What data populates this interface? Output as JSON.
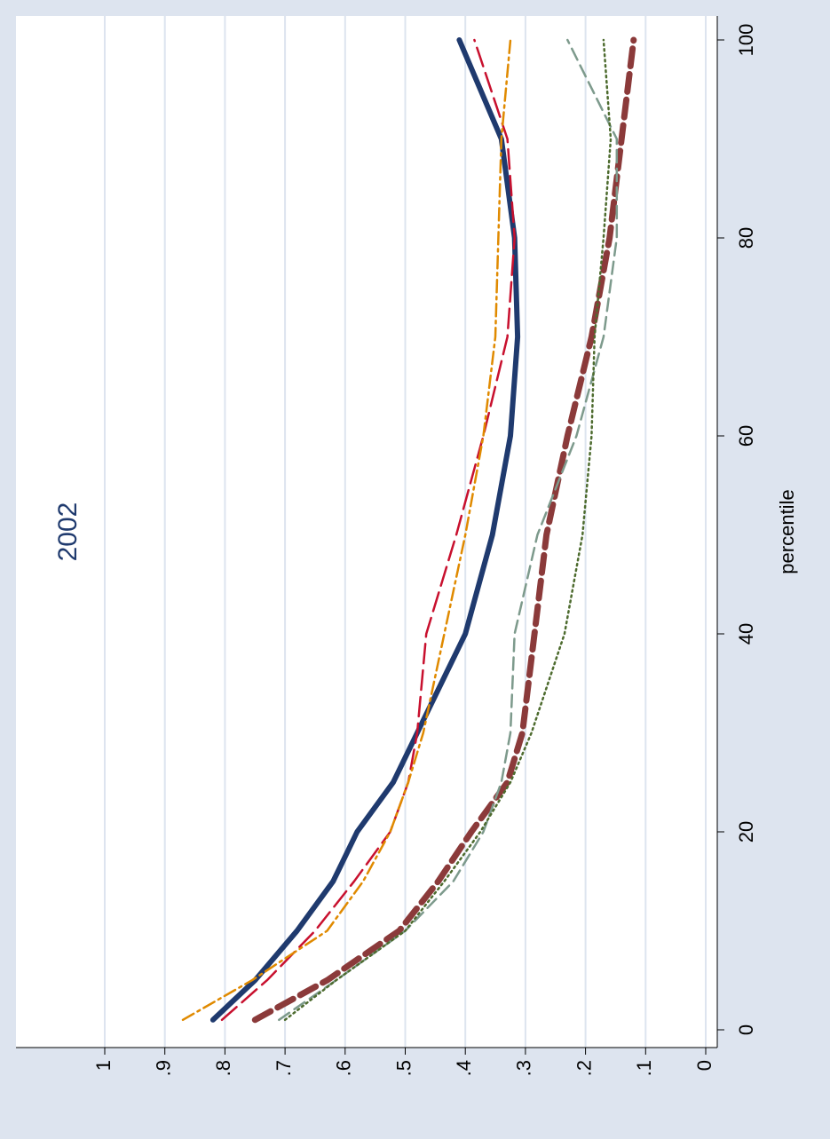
{
  "chart_data": {
    "type": "line",
    "title": "2002",
    "x_label": "percentile",
    "x": [
      1,
      5,
      10,
      15,
      20,
      25,
      30,
      40,
      50,
      60,
      70,
      80,
      90,
      100
    ],
    "series": [
      {
        "color": "#1f3a6e",
        "values": [
          0.82,
          0.75,
          0.68,
          0.62,
          0.58,
          0.52,
          0.48,
          0.4,
          0.355,
          0.325,
          0.313,
          0.318,
          0.34,
          0.41
        ]
      },
      {
        "color": "#c8102e",
        "values": [
          0.805,
          0.73,
          0.65,
          0.585,
          0.525,
          0.495,
          0.48,
          0.465,
          0.415,
          0.37,
          0.33,
          0.318,
          0.33,
          0.385
        ]
      },
      {
        "color": "#e08a00",
        "values": [
          0.87,
          0.755,
          0.63,
          0.57,
          0.525,
          0.495,
          0.47,
          0.435,
          0.4,
          0.37,
          0.35,
          0.345,
          0.34,
          0.325
        ]
      },
      {
        "color": "#8b3a3a",
        "values": [
          0.75,
          0.63,
          0.51,
          0.445,
          0.39,
          0.33,
          0.305,
          0.285,
          0.265,
          0.23,
          0.19,
          0.16,
          0.14,
          0.12
        ]
      },
      {
        "color": "#7d9a8c",
        "values": [
          0.71,
          0.615,
          0.5,
          0.42,
          0.37,
          0.34,
          0.325,
          0.318,
          0.28,
          0.215,
          0.17,
          0.148,
          0.148,
          0.23
        ]
      },
      {
        "color": "#4d6b2e",
        "values": [
          0.7,
          0.615,
          0.5,
          0.435,
          0.375,
          0.325,
          0.29,
          0.235,
          0.205,
          0.19,
          0.185,
          0.17,
          0.158,
          0.17
        ]
      }
    ],
    "xlim": [
      0,
      100
    ],
    "xticks": [
      0,
      20,
      40,
      60,
      80,
      100
    ],
    "ylim": [
      0,
      1
    ],
    "yticks": [
      {
        "value": 0,
        "label": "0"
      },
      {
        "value": 0.1,
        "label": ".1"
      },
      {
        "value": 0.2,
        "label": ".2"
      },
      {
        "value": 0.3,
        "label": ".3"
      },
      {
        "value": 0.4,
        "label": ".4"
      },
      {
        "value": 0.5,
        "label": ".5"
      },
      {
        "value": 0.6,
        "label": ".6"
      },
      {
        "value": 0.7,
        "label": ".7"
      },
      {
        "value": 0.8,
        "label": ".8"
      },
      {
        "value": 0.9,
        "label": ".9"
      },
      {
        "value": 1,
        "label": "1"
      }
    ],
    "grid": true
  }
}
